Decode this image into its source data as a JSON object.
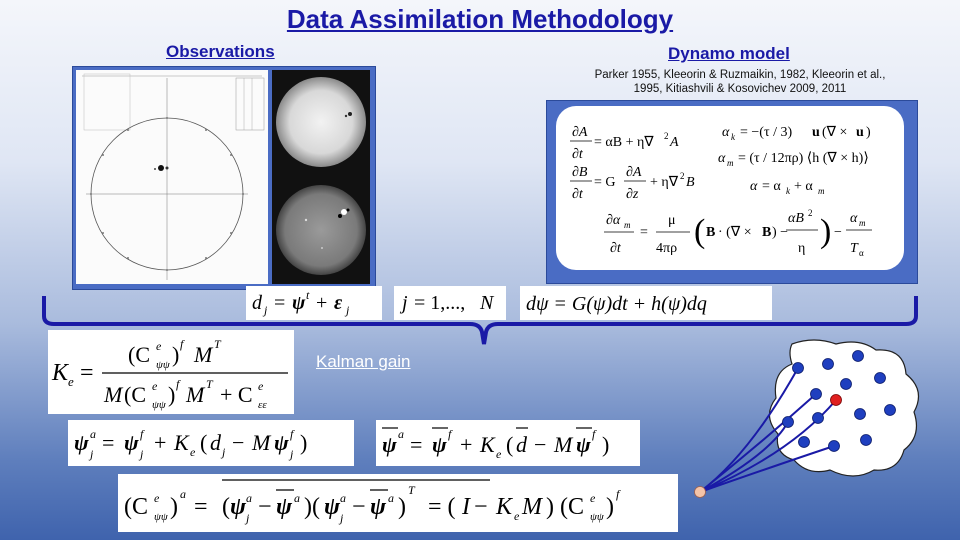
{
  "slide": {
    "title": "Data Assimilation Methodology",
    "observations_label": "Observations",
    "dynamo_label": "Dynamo model",
    "dynamo_citation_line1": "Parker 1955, Kleeorin & Ruzmaikin, 1982, Kleeorin et al.,",
    "dynamo_citation_line2": "1995, Kitiashvili &  Kosovichev 2009, 2011",
    "kalman_gain_link": "Kalman gain"
  },
  "colors": {
    "title": "#1a1aa6",
    "panel_blue": "#4a6cc4",
    "bracket": "#1a1aa6",
    "network_node": "#1f3fbf",
    "highlight_node": "#e02020",
    "origin_node": "#f4c4a8"
  }
}
